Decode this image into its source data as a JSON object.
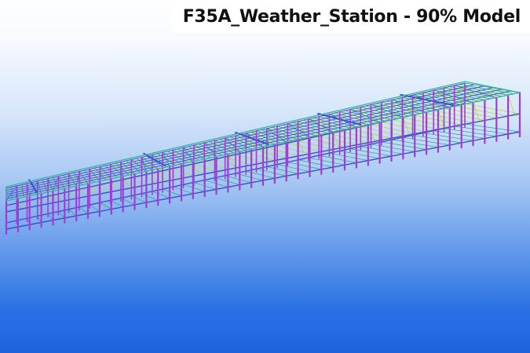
{
  "title": "F35A_Weather_Station - 90% Model",
  "colors": {
    "background_top": "#ffffff",
    "background_bottom": "#1f63dc",
    "columns": "#a23bd6",
    "beams": "#3a4fd0",
    "joists": "#1fa88a",
    "bracing": "#b8d43a",
    "roof_edge": "#34b89a"
  }
}
